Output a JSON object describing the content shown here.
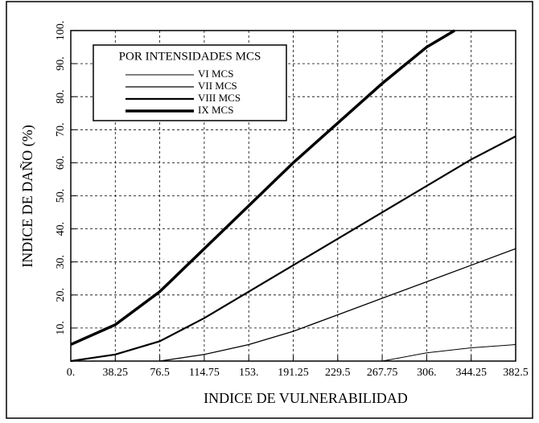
{
  "chart_data": {
    "type": "line",
    "xlabel": "INDICE DE VULNERABILIDAD",
    "ylabel": "INDICE DE DAÑO (%)",
    "legend_title": "POR INTENSIDADES MCS",
    "legend": "upper left",
    "grid": true,
    "color": "#000000",
    "xlim": [
      0,
      382.5
    ],
    "ylim": [
      0,
      100
    ],
    "xticks": [
      {
        "value": 0,
        "label": "0."
      },
      38.25,
      76.5,
      114.75,
      {
        "value": 153,
        "label": "153."
      },
      191.25,
      229.5,
      267.75,
      {
        "value": 306,
        "label": "306."
      },
      344.25,
      382.5
    ],
    "yticks": [
      {
        "value": 10,
        "label": "10."
      },
      {
        "value": 20,
        "label": "20."
      },
      {
        "value": 30,
        "label": "30."
      },
      {
        "value": 40,
        "label": "40."
      },
      {
        "value": 50,
        "label": "50."
      },
      {
        "value": 60,
        "label": "60."
      },
      {
        "value": 70,
        "label": "70."
      },
      {
        "value": 80,
        "label": "80."
      },
      {
        "value": 90,
        "label": "90."
      },
      {
        "value": 100,
        "label": "100."
      }
    ],
    "series": [
      {
        "name": "VI MCS",
        "line_width": 1,
        "x": [
          267.75,
          306,
          344.25,
          382.5
        ],
        "values": [
          0,
          2.5,
          4,
          5
        ]
      },
      {
        "name": "VII MCS",
        "line_width": 1.3,
        "x": [
          76.5,
          114.75,
          153,
          191.25,
          229.5,
          267.75,
          306,
          344.25,
          382.5
        ],
        "values": [
          0,
          2,
          5,
          9,
          14,
          19,
          24,
          29,
          34
        ]
      },
      {
        "name": "VIII MCS",
        "line_width": 2.2,
        "x": [
          0,
          38.25,
          76.5,
          114.75,
          153,
          191.25,
          229.5,
          267.75,
          306,
          344.25,
          382.5
        ],
        "values": [
          0,
          2,
          6,
          13,
          21,
          29,
          37,
          45,
          53,
          61,
          68
        ]
      },
      {
        "name": "IX MCS",
        "line_width": 3.5,
        "x": [
          0,
          38.25,
          76.5,
          114.75,
          153,
          191.25,
          229.5,
          267.75,
          306,
          330
        ],
        "values": [
          5,
          11,
          21,
          34,
          47,
          60,
          72,
          84,
          95,
          100
        ]
      }
    ]
  }
}
